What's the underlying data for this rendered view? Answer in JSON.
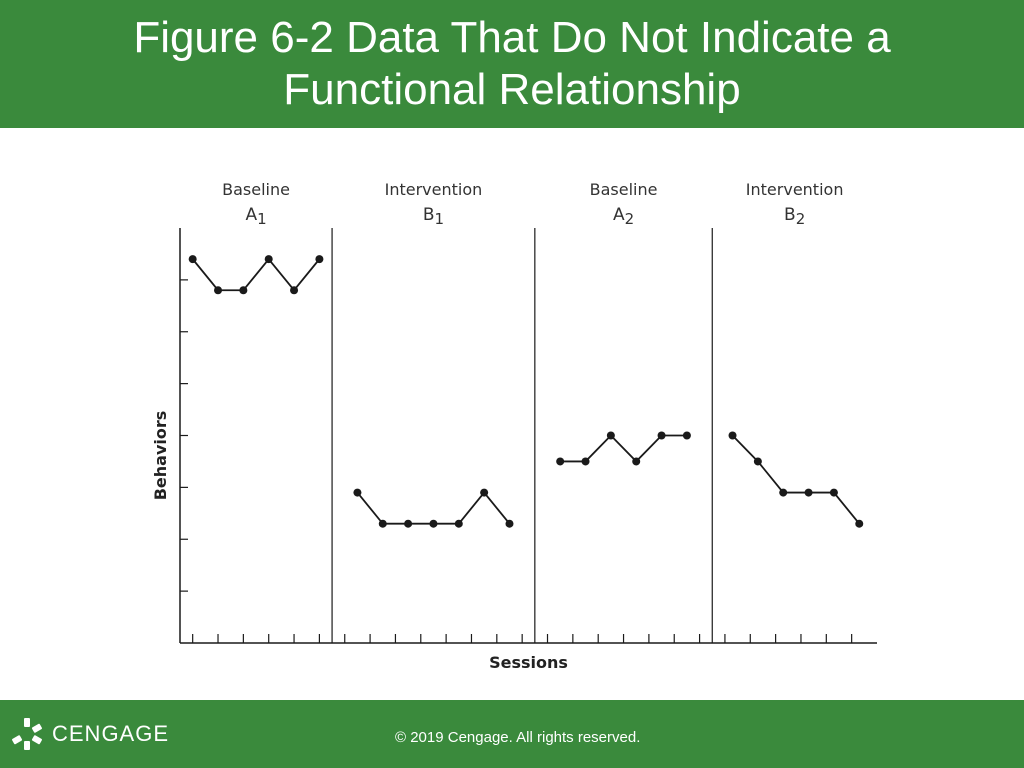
{
  "header": {
    "title": "Figure 6-2 Data That Do Not Indicate a Functional Relationship"
  },
  "footer": {
    "logo_icon": "cengage-logo-icon",
    "logo_text": "CENGAGE",
    "copyright": "© 2019 Cengage. All rights reserved."
  },
  "colors": {
    "accent": "#3a8a3c",
    "data": "#1a1a1a"
  },
  "chart_data": {
    "type": "line",
    "title": "",
    "xlabel": "Sessions",
    "ylabel": "Behaviors",
    "ylim": [
      0,
      8
    ],
    "y_ticks": [
      1,
      2,
      3,
      4,
      5,
      6,
      7
    ],
    "x_range": [
      0.5,
      28
    ],
    "x_ticks": [
      1,
      2,
      3,
      4,
      5,
      6,
      7,
      8,
      9,
      10,
      11,
      12,
      13,
      14,
      15,
      16,
      17,
      18,
      19,
      20,
      21,
      22,
      23,
      24,
      25,
      26,
      27
    ],
    "grid": false,
    "phases": [
      {
        "label": "Baseline",
        "sub": "1",
        "letter": "A",
        "start": 0.5,
        "end": 6.5,
        "x": [
          1,
          2,
          3,
          4,
          5,
          6
        ],
        "values": [
          7.4,
          6.8,
          6.8,
          7.4,
          6.8,
          7.4
        ]
      },
      {
        "label": "Intervention",
        "sub": "1",
        "letter": "B",
        "start": 6.5,
        "end": 14.5,
        "x": [
          7.5,
          8.5,
          9.5,
          10.5,
          11.5,
          12.5,
          13.5
        ],
        "values": [
          2.9,
          2.3,
          2.3,
          2.3,
          2.3,
          2.9,
          2.3
        ]
      },
      {
        "label": "Baseline",
        "sub": "2",
        "letter": "A",
        "start": 14.5,
        "end": 21.5,
        "x": [
          15.5,
          16.5,
          17.5,
          18.5,
          19.5,
          20.5
        ],
        "values": [
          3.5,
          3.5,
          4.0,
          3.5,
          4.0,
          4.0
        ]
      },
      {
        "label": "Intervention",
        "sub": "2",
        "letter": "B",
        "start": 21.5,
        "end": 28,
        "x": [
          22.3,
          23.3,
          24.3,
          25.3,
          26.3,
          27.3
        ],
        "values": [
          4.0,
          3.5,
          2.9,
          2.9,
          2.9,
          2.3
        ]
      }
    ]
  }
}
